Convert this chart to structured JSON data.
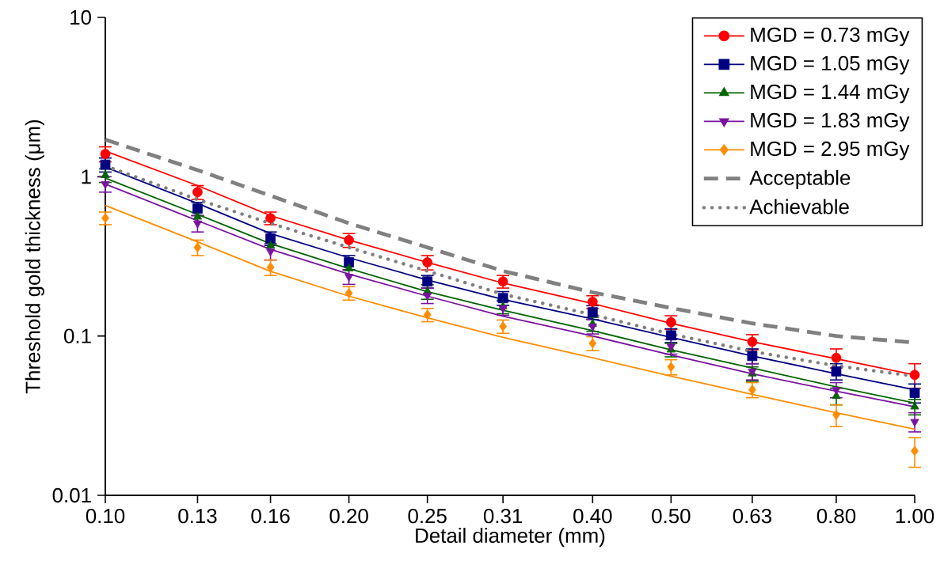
{
  "chart_data": {
    "type": "scatter",
    "xlabel": "Detail diameter (mm)",
    "ylabel": "Threshold gold thickness (μm)",
    "x": [
      0.1,
      0.13,
      0.16,
      0.2,
      0.25,
      0.31,
      0.4,
      0.5,
      0.63,
      0.8,
      1.0
    ],
    "log": "xy",
    "xlim": [
      0.1,
      1.0
    ],
    "ylim": [
      0.01,
      10
    ],
    "xticks": [
      {
        "value": 0.1,
        "label": "0.10"
      },
      {
        "value": 0.13,
        "label": "0.13"
      },
      {
        "value": 0.16,
        "label": "0.16"
      },
      {
        "value": 0.2,
        "label": "0.20"
      },
      {
        "value": 0.25,
        "label": "0.25"
      },
      {
        "value": 0.31,
        "label": "0.31"
      },
      {
        "value": 0.4,
        "label": "0.40"
      },
      {
        "value": 0.5,
        "label": "0.50"
      },
      {
        "value": 0.63,
        "label": "0.63"
      },
      {
        "value": 0.8,
        "label": "0.80"
      },
      {
        "value": 1.0,
        "label": "1.00"
      }
    ],
    "yticks": [
      0.01,
      0.1,
      1,
      10
    ],
    "grid": false,
    "legend": "top right",
    "series": [
      {
        "name": "MGD = 0.73 mGy",
        "color": "#ff0000",
        "marker": "circle",
        "values": [
          1.39,
          0.8,
          0.55,
          0.4,
          0.29,
          0.22,
          0.164,
          0.122,
          0.092,
          0.073,
          0.057
        ],
        "errors": [
          0.15,
          0.08,
          0.05,
          0.04,
          0.03,
          0.02,
          0.015,
          0.012,
          0.01,
          0.01,
          0.01
        ]
      },
      {
        "name": "MGD = 1.05 mGy",
        "color": "#000080",
        "marker": "square",
        "values": [
          1.19,
          0.63,
          0.41,
          0.29,
          0.22,
          0.173,
          0.141,
          0.101,
          0.075,
          0.06,
          0.044
        ],
        "errors": [
          0.12,
          0.06,
          0.04,
          0.03,
          0.02,
          0.017,
          0.014,
          0.01,
          0.008,
          0.007,
          0.006
        ]
      },
      {
        "name": "MGD = 1.44 mGy",
        "color": "#006400",
        "marker": "triangle",
        "values": [
          1.02,
          0.56,
          0.37,
          0.265,
          0.19,
          0.153,
          0.119,
          0.082,
          0.058,
          0.042,
          0.036
        ],
        "errors": [
          0.1,
          null,
          null,
          null,
          0.02,
          0.015,
          0.012,
          0.008,
          0.006,
          0.005,
          0.004
        ]
      },
      {
        "name": "MGD = 1.83 mGy",
        "color": "#7a12a0",
        "marker": "triangle down",
        "values": [
          0.9,
          0.51,
          0.34,
          0.236,
          0.18,
          0.15,
          0.115,
          0.086,
          0.06,
          0.046,
          0.029
        ],
        "errors": [
          0.1,
          0.06,
          0.04,
          0.025,
          0.02,
          0.015,
          0.012,
          0.009,
          0.007,
          0.005,
          0.004
        ]
      },
      {
        "name": "MGD = 2.95 mGy",
        "color": "#ff8c00",
        "marker": "diamond",
        "values": [
          0.55,
          0.36,
          0.27,
          0.186,
          0.136,
          0.115,
          0.09,
          0.064,
          0.046,
          0.032,
          0.019
        ],
        "errors": [
          0.05,
          0.04,
          0.03,
          0.018,
          0.013,
          0.011,
          0.009,
          0.007,
          0.005,
          0.005,
          0.004
        ]
      },
      {
        "type": "line",
        "color": "#ff0000",
        "line_style": "solid",
        "values": [
          1.45,
          0.88,
          0.57,
          0.4,
          0.29,
          0.215,
          0.16,
          0.12,
          0.092,
          0.072,
          0.057
        ]
      },
      {
        "type": "line",
        "color": "#000080",
        "line_style": "solid",
        "values": [
          1.15,
          0.68,
          0.44,
          0.31,
          0.225,
          0.17,
          0.128,
          0.098,
          0.075,
          0.058,
          0.046
        ]
      },
      {
        "type": "line",
        "color": "#006400",
        "line_style": "solid",
        "values": [
          0.98,
          0.58,
          0.38,
          0.265,
          0.19,
          0.145,
          0.108,
          0.082,
          0.063,
          0.048,
          0.038
        ]
      },
      {
        "type": "line",
        "color": "#7a12a0",
        "line_style": "solid",
        "values": [
          0.9,
          0.53,
          0.35,
          0.245,
          0.178,
          0.133,
          0.1,
          0.076,
          0.058,
          0.045,
          0.036
        ]
      },
      {
        "type": "line",
        "color": "#ff8c00",
        "line_style": "solid",
        "values": [
          0.66,
          0.39,
          0.255,
          0.178,
          0.13,
          0.098,
          0.073,
          0.056,
          0.043,
          0.033,
          0.026
        ]
      },
      {
        "type": "line",
        "name": "Acceptable",
        "color": "#808080",
        "line_style": "dashed",
        "values": [
          1.71,
          1.1,
          0.76,
          0.51,
          0.36,
          0.256,
          0.188,
          0.15,
          0.12,
          0.1,
          0.091
        ]
      },
      {
        "type": "line",
        "name": "Achievable",
        "color": "#808080",
        "line_style": "dotted",
        "values": [
          1.17,
          0.72,
          0.51,
          0.36,
          0.256,
          0.183,
          0.136,
          0.103,
          0.08,
          0.065,
          0.056
        ]
      }
    ]
  }
}
